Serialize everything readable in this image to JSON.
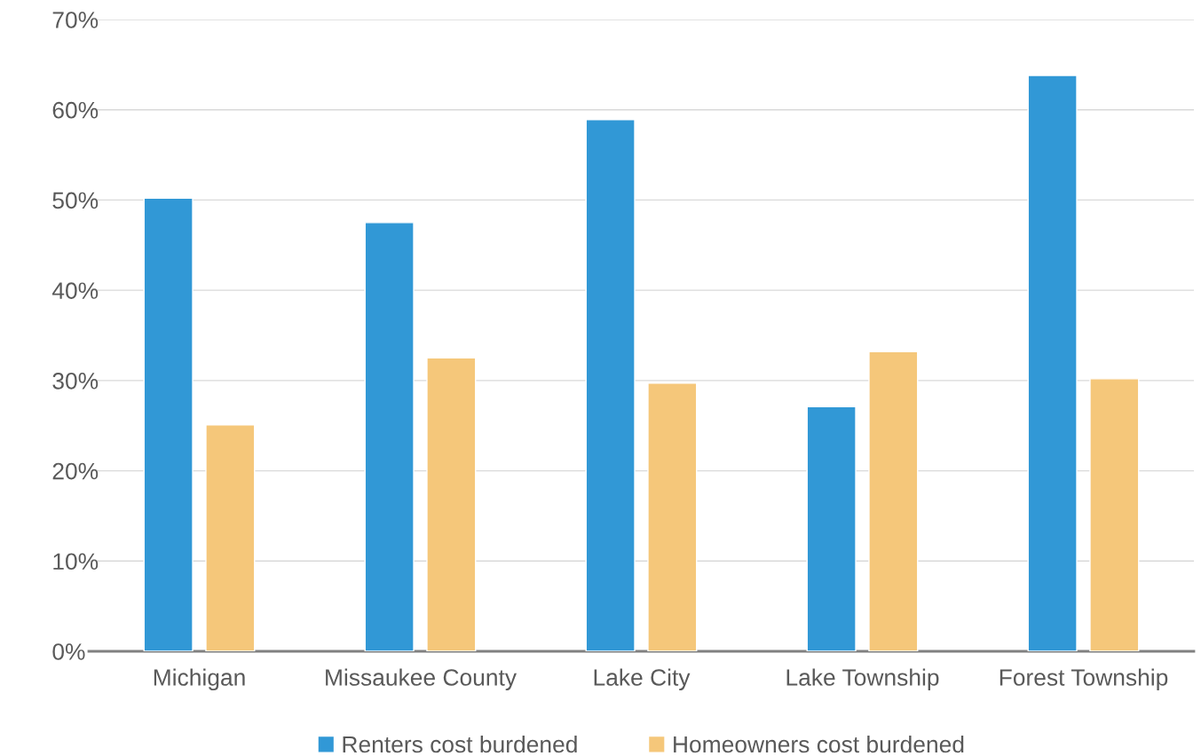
{
  "chart_data": {
    "type": "bar",
    "categories": [
      "Michigan",
      "Missaukee County",
      "Lake City",
      "Lake Township",
      "Forest Township"
    ],
    "series": [
      {
        "name": "Renters cost burdened",
        "color": "#3198d6",
        "values": [
          50.2,
          47.5,
          58.9,
          27.1,
          63.8
        ]
      },
      {
        "name": "Homeowners cost burdened",
        "color": "#f5c77a",
        "values": [
          25.1,
          32.5,
          29.7,
          33.2,
          30.2
        ]
      }
    ],
    "ylim": [
      0,
      70
    ],
    "yticks": [
      {
        "value": 0,
        "label": "0%"
      },
      {
        "value": 10,
        "label": "10%"
      },
      {
        "value": 20,
        "label": "20%"
      },
      {
        "value": 30,
        "label": "30%"
      },
      {
        "value": 40,
        "label": "40%"
      },
      {
        "value": 50,
        "label": "50%"
      },
      {
        "value": 60,
        "label": "60%"
      },
      {
        "value": 70,
        "label": "70%"
      }
    ],
    "grid": "y",
    "legend": "bottom"
  }
}
